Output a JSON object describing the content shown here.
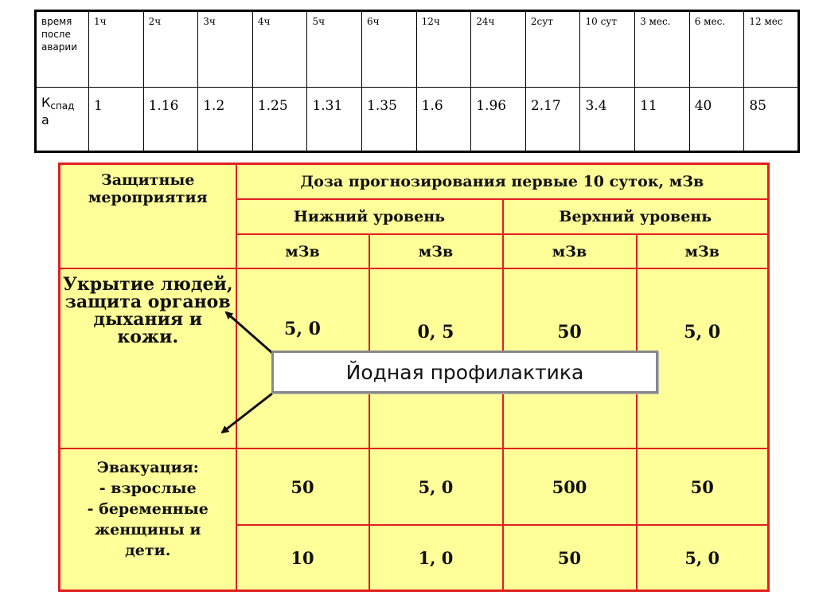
{
  "decay_table": {
    "header_label": "время после аварии",
    "value_label_main": "К",
    "value_label_sub": "спад",
    "value_label_tail": "а",
    "columns": [
      {
        "time": "1ч",
        "k": "1"
      },
      {
        "time": "2ч",
        "k": "1.16"
      },
      {
        "time": "3ч",
        "k": "1.2"
      },
      {
        "time": "4ч",
        "k": "1.25"
      },
      {
        "time": "5ч",
        "k": "1.31"
      },
      {
        "time": "6ч",
        "k": "1.35"
      },
      {
        "time": "12ч",
        "k": "1.6"
      },
      {
        "time": "24ч",
        "k": "1.96"
      },
      {
        "time": "2сут",
        "k": "2.17"
      },
      {
        "time": "10 сут",
        "k": "3.4"
      },
      {
        "time": "3 мес.",
        "k": "11"
      },
      {
        "time": "6 мес.",
        "k": "40"
      },
      {
        "time": "12 мес",
        "k": "85"
      }
    ]
  },
  "dose_table": {
    "measures_header": "Защитные мероприятия",
    "dose_header": "Доза прогнозирования первые 10 суток, мЗв",
    "lower_level": "Нижний уровень",
    "upper_level": "Верхний уровень",
    "units": [
      "мЗв",
      "мЗв",
      "мЗв",
      "мЗв"
    ],
    "shelter": {
      "lines": [
        "Укрытие людей,",
        "защита органов",
        "дыхания и кожи."
      ],
      "values": [
        "5, 0",
        "0, 5",
        "50",
        "5, 0"
      ]
    },
    "evacuation": {
      "lines": [
        "Эвакуация:",
        "- взрослые",
        "- беременные",
        "женщины и",
        "дети."
      ],
      "adults": [
        "50",
        "5, 0",
        "500",
        "50"
      ],
      "pregnant_children": [
        "10",
        "1, 0",
        "50",
        "5, 0"
      ]
    }
  },
  "callout": {
    "text": "Йодная профилактика"
  },
  "colors": {
    "table_fill": "#ffff99",
    "table_border": "#e02020",
    "callout_border": "#888888"
  }
}
